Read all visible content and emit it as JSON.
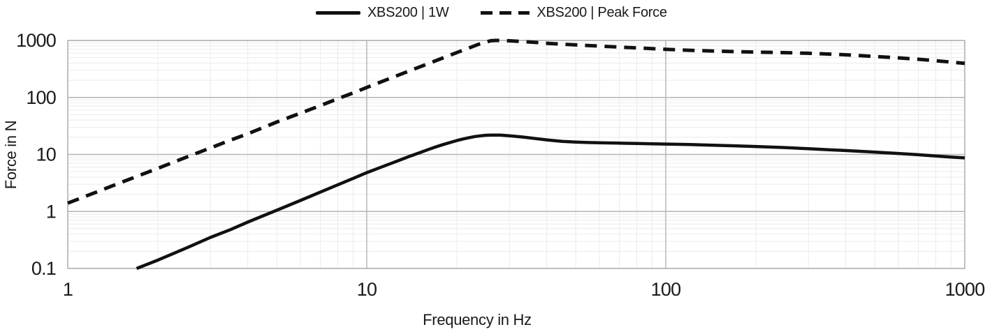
{
  "colors": {
    "background": "#ffffff",
    "text": "#1a1a1a",
    "line": "#111111",
    "major_grid": "#b3b3b3",
    "minor_grid": "#ebebeb"
  },
  "chart_data": {
    "type": "line",
    "title": "",
    "xlabel": "Frequency in Hz",
    "ylabel": "Force in N",
    "x_scale": "log",
    "y_scale": "log",
    "xlim": [
      1,
      1000
    ],
    "ylim": [
      0.1,
      1000
    ],
    "x_ticks": [
      1,
      10,
      100,
      1000
    ],
    "x_tick_labels": [
      "1",
      "10",
      "100",
      "1000"
    ],
    "y_ticks": [
      0.1,
      1,
      10,
      100,
      1000
    ],
    "y_tick_labels": [
      "0.1",
      "1",
      "10",
      "100",
      "1000"
    ],
    "grid": {
      "major": true,
      "minor": true
    },
    "legend_position": "top-center",
    "series": [
      {
        "name": "XBS200 | 1W",
        "line_style": "solid",
        "color": "#111111",
        "points": [
          [
            1.7,
            0.1
          ],
          [
            2,
            0.14
          ],
          [
            2.5,
            0.23
          ],
          [
            3,
            0.35
          ],
          [
            3.5,
            0.48
          ],
          [
            4,
            0.65
          ],
          [
            5,
            1.05
          ],
          [
            6,
            1.56
          ],
          [
            7,
            2.19
          ],
          [
            8,
            2.93
          ],
          [
            9,
            3.8
          ],
          [
            10,
            4.8
          ],
          [
            11,
            5.8
          ],
          [
            12,
            6.9
          ],
          [
            13,
            8.1
          ],
          [
            14,
            9.4
          ],
          [
            15,
            10.7
          ],
          [
            16,
            12.1
          ],
          [
            17,
            13.5
          ],
          [
            18,
            14.9
          ],
          [
            19,
            16.2
          ],
          [
            20,
            17.5
          ],
          [
            21,
            18.7
          ],
          [
            22,
            19.7
          ],
          [
            23,
            20.6
          ],
          [
            24,
            21.2
          ],
          [
            25,
            21.7
          ],
          [
            26,
            21.9
          ],
          [
            27,
            21.9
          ],
          [
            28,
            21.8
          ],
          [
            30,
            21.3
          ],
          [
            33,
            20.3
          ],
          [
            36,
            19.2
          ],
          [
            40,
            18.0
          ],
          [
            45,
            17.0
          ],
          [
            50,
            16.5
          ],
          [
            55,
            16.2
          ],
          [
            60,
            16.0
          ],
          [
            70,
            15.8
          ],
          [
            80,
            15.6
          ],
          [
            90,
            15.4
          ],
          [
            100,
            15.2
          ],
          [
            120,
            14.9
          ],
          [
            140,
            14.6
          ],
          [
            170,
            14.2
          ],
          [
            200,
            13.8
          ],
          [
            250,
            13.2
          ],
          [
            300,
            12.6
          ],
          [
            350,
            12.1
          ],
          [
            400,
            11.7
          ],
          [
            500,
            11.0
          ],
          [
            600,
            10.4
          ],
          [
            700,
            9.9
          ],
          [
            800,
            9.4
          ],
          [
            900,
            9.0
          ],
          [
            1000,
            8.7
          ]
        ]
      },
      {
        "name": "XBS200 | Peak Force",
        "line_style": "dashed",
        "color": "#111111",
        "points": [
          [
            1,
            1.4
          ],
          [
            1.25,
            2.2
          ],
          [
            1.5,
            3.2
          ],
          [
            2,
            5.7
          ],
          [
            2.5,
            9.0
          ],
          [
            3,
            13
          ],
          [
            3.5,
            17.8
          ],
          [
            4,
            23
          ],
          [
            5,
            37
          ],
          [
            6,
            53
          ],
          [
            7,
            72
          ],
          [
            8,
            95
          ],
          [
            9,
            120
          ],
          [
            10,
            150
          ],
          [
            12,
            217
          ],
          [
            14,
            297
          ],
          [
            16,
            389
          ],
          [
            18,
            494
          ],
          [
            20,
            613
          ],
          [
            22,
            740
          ],
          [
            24,
            880
          ],
          [
            26,
            990
          ],
          [
            27,
            1000
          ],
          [
            28,
            1000
          ],
          [
            29,
            995
          ],
          [
            30,
            985
          ],
          [
            35,
            940
          ],
          [
            40,
            890
          ],
          [
            45,
            860
          ],
          [
            50,
            835
          ],
          [
            60,
            795
          ],
          [
            70,
            765
          ],
          [
            80,
            740
          ],
          [
            90,
            720
          ],
          [
            100,
            700
          ],
          [
            120,
            672
          ],
          [
            140,
            655
          ],
          [
            170,
            638
          ],
          [
            200,
            625
          ],
          [
            250,
            610
          ],
          [
            300,
            595
          ],
          [
            350,
            577
          ],
          [
            400,
            560
          ],
          [
            500,
            523
          ],
          [
            600,
            495
          ],
          [
            700,
            468
          ],
          [
            800,
            440
          ],
          [
            900,
            418
          ],
          [
            1000,
            396
          ]
        ]
      }
    ]
  }
}
